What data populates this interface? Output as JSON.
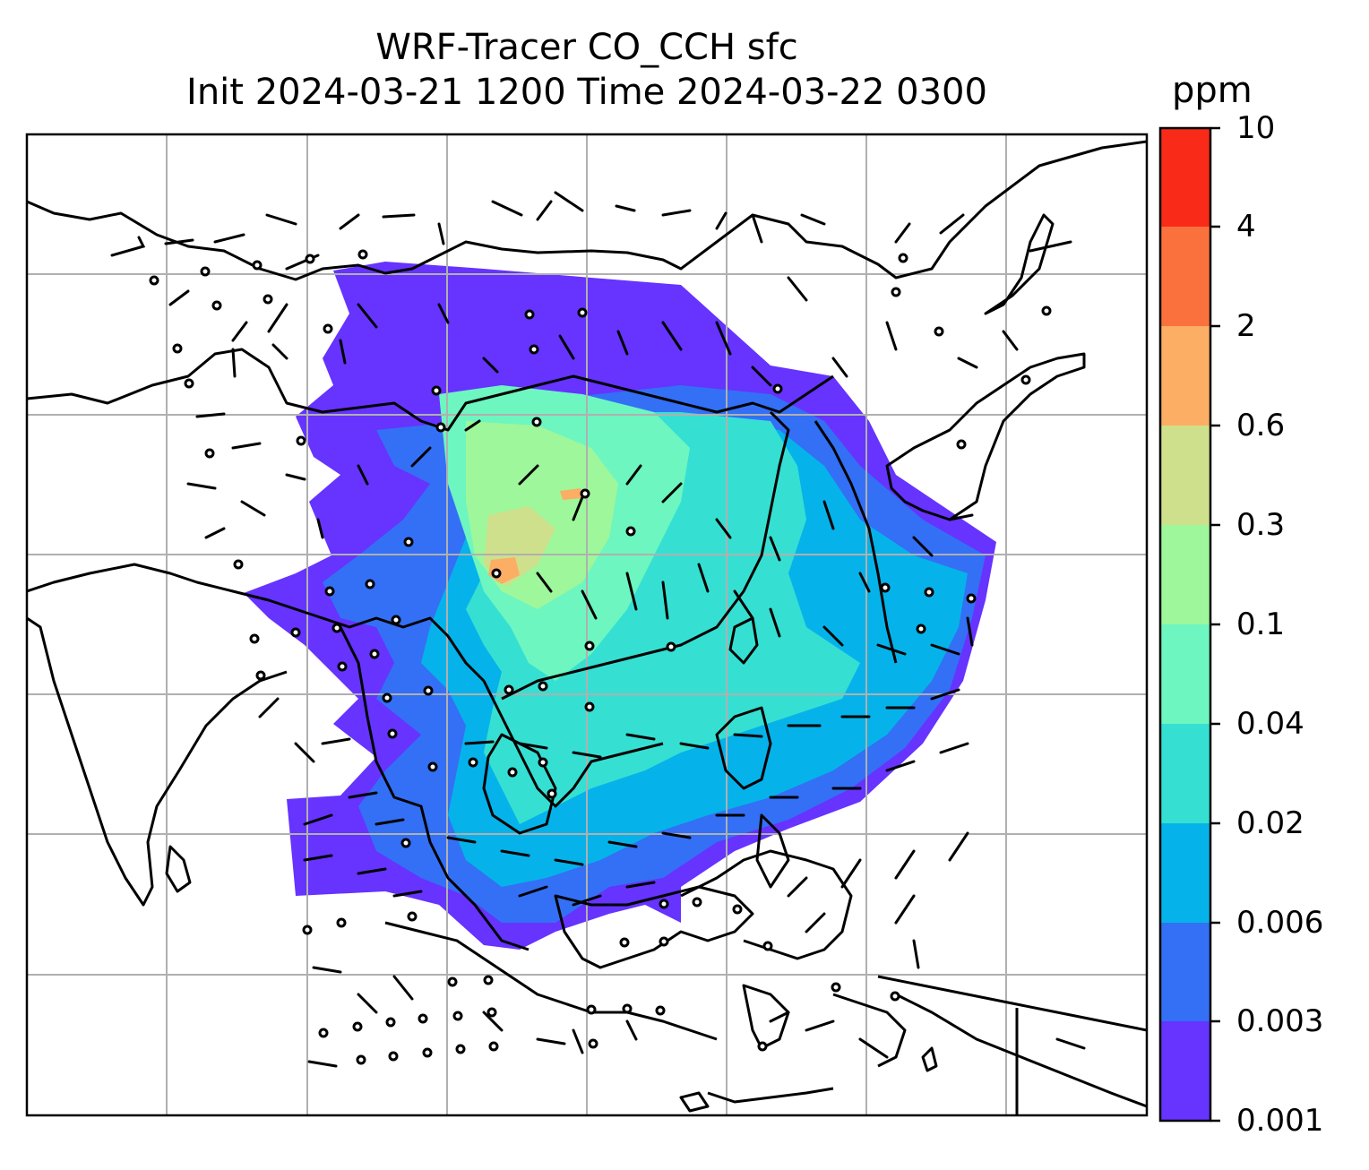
{
  "title": {
    "line1": "WRF-Tracer CO_CCH sfc",
    "line2": "Init 2024-03-21 1200 Time 2024-03-22 0300"
  },
  "colorbar": {
    "unit": "ppm",
    "tick_labels": [
      "10",
      "4",
      "2",
      "0.6",
      "0.3",
      "0.1",
      "0.04",
      "0.02",
      "0.006",
      "0.003",
      "0.001"
    ],
    "colors": [
      "#2bb7ea",
      "#35e0d3",
      "#6df6c0",
      "#9ef79a",
      "#cee08c",
      "#fbae64",
      "#fb713d",
      "#fa2a18",
      "#6633ff",
      "#3370f5"
    ],
    "bins": [
      {
        "from": "0.001",
        "to": "0.003",
        "color": "#6633ff"
      },
      {
        "from": "0.003",
        "to": "0.006",
        "color": "#3370f5"
      },
      {
        "from": "0.006",
        "to": "0.02",
        "color": "#05b3ea"
      },
      {
        "from": "0.02",
        "to": "0.04",
        "color": "#35e0d3"
      },
      {
        "from": "0.04",
        "to": "0.1",
        "color": "#6df6c0"
      },
      {
        "from": "0.1",
        "to": "0.3",
        "color": "#9ef79a"
      },
      {
        "from": "0.3",
        "to": "0.6",
        "color": "#cee08c"
      },
      {
        "from": "0.6",
        "to": "2",
        "color": "#fbae64"
      },
      {
        "from": "2",
        "to": "4",
        "color": "#fb713d"
      },
      {
        "from": "4",
        "to": "10",
        "color": "#fa2a18"
      }
    ]
  },
  "map": {
    "gridlines": true,
    "grid_color": "#b0b0b0",
    "coastline_color": "#000000",
    "wind_barbs": true
  }
}
